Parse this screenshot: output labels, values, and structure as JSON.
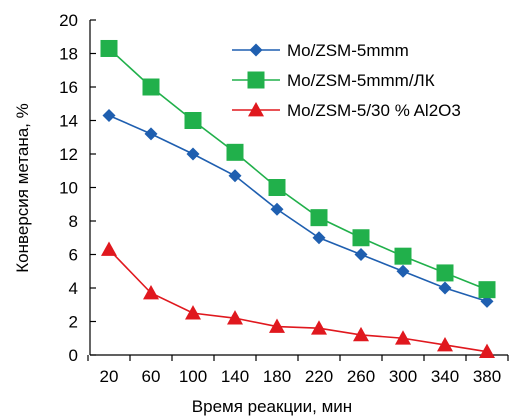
{
  "chart_data": {
    "type": "line",
    "title": "",
    "xlabel": "Время реакции, мин",
    "ylabel": "Конверсия метана, %",
    "x": [
      20,
      60,
      100,
      140,
      180,
      220,
      260,
      300,
      340,
      380
    ],
    "x_ticks": [
      20,
      60,
      100,
      140,
      180,
      220,
      260,
      300,
      340,
      380
    ],
    "y_ticks": [
      0,
      2,
      4,
      6,
      8,
      10,
      12,
      14,
      16,
      18,
      20
    ],
    "ylim": [
      0,
      20
    ],
    "grid": false,
    "legend_position": "top-right",
    "series": [
      {
        "name": "Mo/ZSM-5mmm",
        "color": "#1f5fb0",
        "marker": "diamond",
        "values": [
          14.3,
          13.2,
          12.0,
          10.7,
          8.7,
          7.0,
          6.0,
          5.0,
          4.0,
          3.2
        ]
      },
      {
        "name": "Mo/ZSM-5mmm/ЛК",
        "color": "#21b04b",
        "marker": "square",
        "values": [
          18.3,
          16.0,
          14.0,
          12.1,
          10.0,
          8.2,
          7.0,
          5.9,
          4.9,
          3.9
        ]
      },
      {
        "name": "Mo/ZSM-5/30 % Al2O3",
        "color": "#e0181e",
        "marker": "triangle",
        "values": [
          6.3,
          3.7,
          2.5,
          2.2,
          1.7,
          1.6,
          1.2,
          1.0,
          0.6,
          0.2
        ]
      }
    ]
  }
}
